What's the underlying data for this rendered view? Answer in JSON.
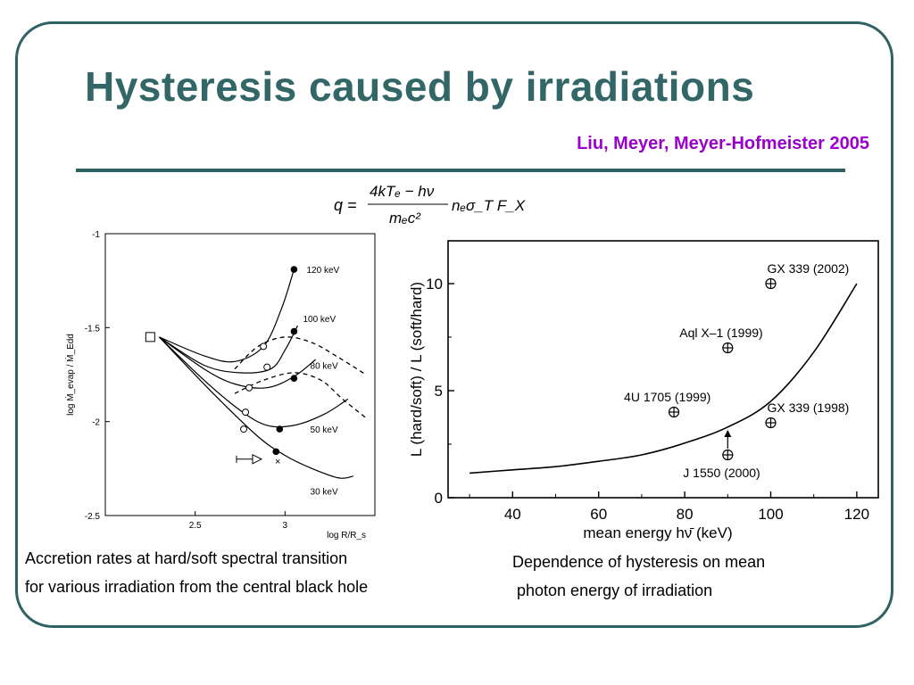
{
  "slide": {
    "title": "Hysteresis caused by irradiations",
    "author": "Liu, Meyer, Meyer-Hofmeister 2005",
    "caption_left_1": "Accretion rates at hard/soft spectral transition",
    "caption_left_2": "for various irradiation from the central black hole",
    "caption_right_1": "Dependence of hysteresis on mean",
    "caption_right_2": " photon energy of irradiation"
  },
  "formula": {
    "lhs": "q =",
    "numerator": "4kTₑ − hν",
    "denominator": "mₑc²",
    "factors": "nₑσ_T F_X"
  },
  "chart_data": [
    {
      "type": "line",
      "title": "",
      "xlabel": "log  R/R_s",
      "ylabel": "log  Ṁ_evap / Ṁ_Edd",
      "xlim": [
        2.0,
        3.5
      ],
      "ylim": [
        -2.5,
        -1.0
      ],
      "x_ticks": [
        "2.5",
        "3"
      ],
      "y_ticks": [
        "-1",
        "-1.5",
        "-2",
        "-2.5"
      ],
      "series": [
        {
          "name": "120 keV",
          "points": [
            [
              2.3,
              -1.55
            ],
            [
              2.55,
              -1.65
            ],
            [
              2.72,
              -1.68
            ],
            [
              2.88,
              -1.6
            ],
            [
              2.98,
              -1.4
            ],
            [
              3.05,
              -1.19
            ]
          ]
        },
        {
          "name": "100 keV",
          "points": [
            [
              2.3,
              -1.55
            ],
            [
              2.55,
              -1.7
            ],
            [
              2.75,
              -1.74
            ],
            [
              2.92,
              -1.72
            ],
            [
              3.0,
              -1.62
            ],
            [
              3.07,
              -1.49
            ]
          ]
        },
        {
          "name": "80 keV",
          "points": [
            [
              2.3,
              -1.55
            ],
            [
              2.55,
              -1.72
            ],
            [
              2.72,
              -1.8
            ],
            [
              2.9,
              -1.82
            ],
            [
              3.05,
              -1.76
            ],
            [
              3.17,
              -1.67
            ]
          ]
        },
        {
          "name": "50 keV",
          "points": [
            [
              2.3,
              -1.55
            ],
            [
              2.55,
              -1.78
            ],
            [
              2.75,
              -1.94
            ],
            [
              2.9,
              -2.02
            ],
            [
              3.05,
              -2.02
            ],
            [
              3.22,
              -1.96
            ],
            [
              3.35,
              -1.88
            ]
          ]
        },
        {
          "name": "30 keV",
          "points": [
            [
              2.3,
              -1.55
            ],
            [
              2.6,
              -1.85
            ],
            [
              2.85,
              -2.08
            ],
            [
              3.0,
              -2.18
            ],
            [
              3.15,
              -2.25
            ],
            [
              3.3,
              -2.3
            ],
            [
              3.38,
              -2.29
            ]
          ]
        }
      ],
      "dashed_series": [
        {
          "points": [
            [
              2.72,
              -1.72
            ],
            [
              2.85,
              -1.6
            ],
            [
              3.0,
              -1.55
            ],
            [
              3.15,
              -1.58
            ],
            [
              3.3,
              -1.66
            ],
            [
              3.45,
              -1.75
            ]
          ]
        },
        {
          "points": [
            [
              2.72,
              -1.85
            ],
            [
              2.88,
              -1.78
            ],
            [
              3.05,
              -1.74
            ],
            [
              3.2,
              -1.78
            ],
            [
              3.32,
              -1.88
            ],
            [
              3.45,
              -1.98
            ]
          ]
        }
      ],
      "open_markers": [
        [
          2.88,
          -1.6
        ],
        [
          2.9,
          -1.71
        ],
        [
          2.8,
          -1.82
        ],
        [
          2.78,
          -1.95
        ],
        [
          2.77,
          -2.04
        ]
      ],
      "filled_markers": [
        [
          3.05,
          -1.19
        ],
        [
          3.05,
          -1.52
        ],
        [
          3.05,
          -1.77
        ],
        [
          2.97,
          -2.04
        ],
        [
          2.95,
          -2.16
        ]
      ],
      "start_square": [
        2.25,
        -1.55
      ],
      "cross_marker": [
        2.96,
        -2.21
      ]
    },
    {
      "type": "line",
      "title": "",
      "xlabel": "mean energy hν̄  (keV)",
      "ylabel": "L  (hard/soft)  /  L  (soft/hard)",
      "xlim": [
        25,
        125
      ],
      "ylim": [
        0,
        12
      ],
      "x_ticks": [
        "40",
        "60",
        "80",
        "100",
        "120"
      ],
      "y_ticks": [
        "0",
        "5",
        "10"
      ],
      "series": [
        {
          "name": "",
          "points": [
            [
              30,
              1.15
            ],
            [
              40,
              1.3
            ],
            [
              50,
              1.45
            ],
            [
              60,
              1.7
            ],
            [
              70,
              2.0
            ],
            [
              80,
              2.55
            ],
            [
              90,
              3.3
            ],
            [
              100,
              4.5
            ],
            [
              110,
              6.8
            ],
            [
              120,
              10.0
            ]
          ]
        }
      ],
      "observations": [
        {
          "label": "GX 339 (2002)",
          "x": 100,
          "y": 10.0
        },
        {
          "label": "Aql X–1 (1999)",
          "x": 90,
          "y": 7.0
        },
        {
          "label": "4U 1705 (1999)",
          "x": 77.5,
          "y": 4.0
        },
        {
          "label": "GX 339 (1998)",
          "x": 100,
          "y": 3.5
        },
        {
          "label": "J 1550 (2000)",
          "x": 90,
          "y": 2.0,
          "lower_limit": true
        }
      ]
    }
  ]
}
